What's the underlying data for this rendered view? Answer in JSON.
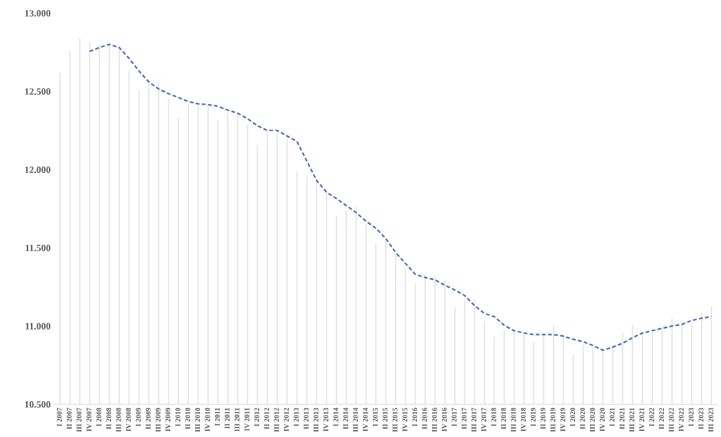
{
  "chart_data": {
    "type": "bar",
    "categories": [
      "I 2007",
      "II 2007",
      "III 2007",
      "IV 2007",
      "I 2008",
      "II 2008",
      "III 2008",
      "IV 2008",
      "I 2009",
      "II 2009",
      "III 2009",
      "IV 2009",
      "I 2010",
      "II 2010",
      "III 2010",
      "IV 2010",
      "I 2011",
      "II 2011",
      "III 2011",
      "IV 2011",
      "I 2012",
      "II 2012",
      "III 2012",
      "IV 2012",
      "I 2013",
      "II 2013",
      "III 2013",
      "IV 2013",
      "I 2014",
      "II 2014",
      "III 2014",
      "IV 2014",
      "I 2015",
      "II 2015",
      "III 2015",
      "IV 2015",
      "I 2016",
      "II 2016",
      "III 2016",
      "IV 2016",
      "I 2017",
      "II 2017",
      "III 2017",
      "IV 2017",
      "I 2018",
      "II 2018",
      "III 2018",
      "IV 2018",
      "I 2019",
      "II 2019",
      "III 2019",
      "IV 2019",
      "I 2020",
      "II 2020",
      "III 2020",
      "IV 2020",
      "I 2021",
      "II 2021",
      "III 2021",
      "IV 2021",
      "I 2022",
      "II 2022",
      "III 2022",
      "IV 2022",
      "I 2023",
      "II 2023",
      "III 2023"
    ],
    "series": [
      {
        "color": "#e3e3e3",
        "values": [
          12620,
          12760,
          12840,
          12815,
          12800,
          12800,
          12790,
          12635,
          12510,
          12575,
          12555,
          12450,
          12330,
          12420,
          12405,
          12405,
          12315,
          12370,
          12360,
          12285,
          12160,
          12250,
          12250,
          12215,
          11990,
          11955,
          11930,
          11875,
          11705,
          11740,
          11760,
          11650,
          11525,
          11560,
          11465,
          11365,
          11275,
          11330,
          11320,
          11295,
          11115,
          11170,
          11170,
          11035,
          10935,
          10970,
          10970,
          10945,
          10900,
          10945,
          11005,
          10945,
          10820,
          10880,
          10865,
          10855,
          10875,
          10955,
          11005,
          10945,
          10960,
          10990,
          11050,
          11035,
          11015,
          11085,
          11125
        ]
      },
      {
        "type": "line",
        "color": "#4a6fb5",
        "line_style": "dashed",
        "marker": "none",
        "values": [
          null,
          null,
          null,
          12755,
          12780,
          12800,
          12780,
          12710,
          12630,
          12560,
          12515,
          12485,
          12460,
          12435,
          12420,
          12415,
          12405,
          12380,
          12360,
          12325,
          12280,
          12250,
          12250,
          12215,
          12180,
          12055,
          11930,
          11855,
          11815,
          11770,
          11725,
          11670,
          11625,
          11560,
          11470,
          11400,
          11330,
          11310,
          11295,
          11260,
          11230,
          11195,
          11130,
          11080,
          11060,
          11005,
          10970,
          10955,
          10945,
          10945,
          10945,
          10935,
          10915,
          10900,
          10875,
          10845,
          10865,
          10890,
          10925,
          10955,
          10970,
          10985,
          11000,
          11010,
          11035,
          11050,
          11060
        ]
      }
    ],
    "ylim": [
      10500,
      13000
    ],
    "yticks": [
      {
        "value": 10500,
        "label": "10.500"
      },
      {
        "value": 11000,
        "label": "11.000"
      },
      {
        "value": 11500,
        "label": "11.500"
      },
      {
        "value": 12000,
        "label": "12.000"
      },
      {
        "value": 12500,
        "label": "12.500"
      },
      {
        "value": 13000,
        "label": "13.000"
      }
    ],
    "grid": false
  }
}
